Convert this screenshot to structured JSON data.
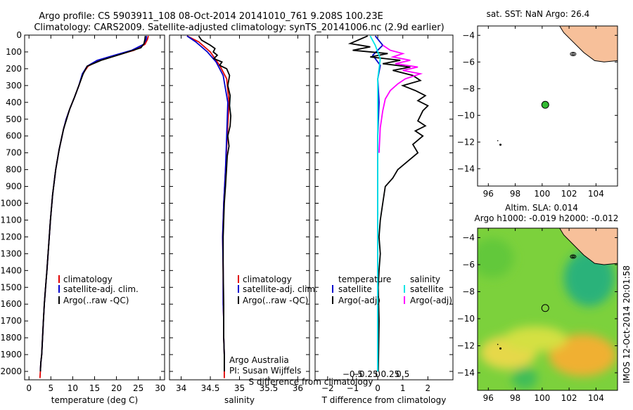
{
  "header": {
    "line1": "Argo profile: CS 5903911_108 08-Oct-2014 20141010_761 9.208S 100.23E",
    "line2": "Climatology: CARS2009. Satellite-adjusted climatology: synTS_20141006.nc (2.9d earlier)"
  },
  "side_stamp": "IMOS 12-Oct-2014 20:01:58",
  "colors": {
    "red": "#e00000",
    "blue": "#0000cc",
    "black": "#000000",
    "cyan": "#00e5e5",
    "magenta": "#ff00ff",
    "land": "#f7c09a",
    "ocean": "#ffffff",
    "float_marker": "#33bb33"
  },
  "chart_data": [
    {
      "id": "temperature",
      "type": "line",
      "xlabel": "temperature (deg C)",
      "ylabel": "",
      "xlim": [
        -1,
        31
      ],
      "ylim": [
        2050,
        0
      ],
      "xticks": [
        0,
        5,
        10,
        15,
        20,
        25,
        30
      ],
      "xtick_labels": [
        "0",
        "5",
        "10",
        "15",
        "20",
        "25",
        "30"
      ],
      "yticks": [
        0,
        100,
        200,
        300,
        400,
        500,
        600,
        700,
        800,
        900,
        1000,
        1100,
        1200,
        1300,
        1400,
        1500,
        1600,
        1700,
        1800,
        1900,
        2000
      ],
      "ytick_labels": [
        "0",
        "100",
        "200",
        "300",
        "400",
        "500",
        "600",
        "700",
        "800",
        "900",
        "1000",
        "1100",
        "1200",
        "1300",
        "1400",
        "1500",
        "1600",
        "1700",
        "1800",
        "1900",
        "2000"
      ],
      "legend": [
        "climatology",
        "satellite-adj. clim.",
        "Argo(..raw -QC)"
      ],
      "series": [
        {
          "name": "climatology",
          "color": "red",
          "x": [
            27.3,
            27.1,
            26.5,
            24,
            20,
            16,
            13.5,
            12.3,
            11.4,
            10.4,
            9.3,
            8.5,
            7.9,
            7.4,
            6.9,
            6.1,
            5.4,
            4.9,
            4.5,
            4.1,
            3.8,
            3.5,
            3.3,
            3.1,
            2.9,
            2.7,
            2.6,
            2.5
          ],
          "y": [
            5,
            25,
            55,
            90,
            120,
            150,
            185,
            230,
            300,
            370,
            440,
            500,
            560,
            620,
            680,
            800,
            950,
            1100,
            1250,
            1400,
            1500,
            1600,
            1700,
            1800,
            1900,
            1950,
            2000,
            2040
          ]
        },
        {
          "name": "satellite-adj. clim.",
          "color": "blue",
          "x": [
            26.9,
            26.8,
            26.2,
            23.5,
            19.5,
            15.6,
            13.3,
            12.2,
            11.4,
            10.4,
            9.3,
            8.5,
            7.9,
            7.4,
            6.9,
            6.1,
            5.4,
            4.9,
            4.5,
            4.1,
            3.8,
            3.5,
            3.3,
            3.1,
            2.9,
            2.7,
            2.6
          ],
          "y": [
            5,
            25,
            55,
            90,
            120,
            150,
            185,
            230,
            300,
            370,
            440,
            500,
            560,
            620,
            680,
            800,
            950,
            1100,
            1250,
            1400,
            1500,
            1600,
            1700,
            1800,
            1900,
            1950,
            2000
          ]
        },
        {
          "name": "Argo(..raw -QC)",
          "color": "black",
          "x": [
            26.6,
            26.5,
            26.3,
            25.6,
            21.5,
            16.5,
            13.3,
            12.4,
            11.4,
            10.4,
            9.3,
            8.6,
            7.9,
            7.4,
            6.9,
            6.1,
            5.4,
            4.9,
            4.5,
            4.1,
            3.8,
            3.5,
            3.3,
            3.1,
            2.9,
            2.7,
            2.6
          ],
          "y": [
            5,
            25,
            50,
            75,
            110,
            150,
            185,
            230,
            300,
            370,
            440,
            500,
            560,
            620,
            680,
            800,
            950,
            1100,
            1250,
            1400,
            1500,
            1600,
            1700,
            1800,
            1900,
            1950,
            2000
          ]
        }
      ]
    },
    {
      "id": "salinity",
      "type": "line",
      "xlabel": "salinity",
      "xlim": [
        33.8,
        36.2
      ],
      "ylim": [
        2050,
        0
      ],
      "xticks": [
        34,
        34.5,
        35,
        35.5,
        36
      ],
      "xtick_labels": [
        "34",
        "34.5",
        "35",
        "35.5",
        "36"
      ],
      "legend": [
        "climatology",
        "satellite-adj. clim.",
        "Argo(..raw -QC)"
      ],
      "annotations": [
        "Argo Australia",
        "PI: Susan Wijffels"
      ],
      "series": [
        {
          "name": "climatology",
          "color": "red",
          "x": [
            34.1,
            34.3,
            34.5,
            34.66,
            34.78,
            34.82,
            34.79,
            34.76,
            34.73,
            34.71,
            34.72,
            34.72,
            34.73,
            34.73,
            34.74,
            34.74,
            34.74
          ],
          "y": [
            5,
            40,
            100,
            180,
            260,
            400,
            600,
            800,
            1000,
            1200,
            1400,
            1600,
            1700,
            1800,
            1900,
            2000,
            2040
          ]
        },
        {
          "name": "satellite-adj. clim.",
          "color": "blue",
          "x": [
            34.1,
            34.25,
            34.45,
            34.6,
            34.72,
            34.8,
            34.78,
            34.76,
            34.73,
            34.71,
            34.72,
            34.72,
            34.73,
            34.73,
            34.74,
            34.74
          ],
          "y": [
            5,
            40,
            100,
            160,
            240,
            400,
            600,
            800,
            1000,
            1200,
            1400,
            1600,
            1700,
            1800,
            1900,
            2000
          ]
        },
        {
          "name": "Argo(..raw -QC)",
          "color": "black",
          "x": [
            34.3,
            34.35,
            34.5,
            34.58,
            34.55,
            34.62,
            34.56,
            34.7,
            34.66,
            34.78,
            34.83,
            34.8,
            34.84,
            34.83,
            34.85,
            34.84,
            34.8,
            34.82,
            34.79,
            34.78,
            34.76,
            34.74,
            34.73,
            34.72,
            34.72,
            34.73,
            34.73,
            34.74,
            34.74
          ],
          "y": [
            5,
            30,
            60,
            80,
            100,
            120,
            140,
            160,
            180,
            200,
            240,
            300,
            360,
            420,
            480,
            540,
            600,
            660,
            720,
            780,
            900,
            1000,
            1100,
            1200,
            1400,
            1600,
            1800,
            1900,
            2000
          ]
        }
      ]
    },
    {
      "id": "difference",
      "type": "line",
      "xlabel": "T difference from climatology",
      "top_label": "S difference from climatology",
      "xlim": [
        -2.5,
        3
      ],
      "ylim": [
        2050,
        0
      ],
      "xticks": [
        -2,
        -1,
        0,
        1,
        2
      ],
      "xtick_labels": [
        "−2",
        "−1",
        "0",
        "1",
        "2"
      ],
      "s_xticks": [
        -1,
        -0.5,
        0,
        0.5,
        1
      ],
      "s_xtick_labels": [
        "−0.5",
        "−0.25",
        "0",
        "0.25",
        "0.5"
      ],
      "legend_headers": [
        "temperature",
        "salinity"
      ],
      "legend": [
        "satellite",
        "Argo(-adj)",
        "satellite",
        "Argo(-adj)"
      ],
      "series": [
        {
          "name": "satellite",
          "color": "blue",
          "x": [
            -0.1,
            0.2,
            -0.2,
            0.1,
            0,
            0.05,
            0,
            0,
            0,
            0,
            0,
            0
          ],
          "y": [
            5,
            60,
            120,
            180,
            260,
            400,
            600,
            800,
            1000,
            1400,
            1800,
            2000
          ]
        },
        {
          "name": "Argo(-adj)",
          "color": "black",
          "x": [
            -0.4,
            -1.1,
            -0.3,
            -1.0,
            0.4,
            -0.3,
            0.9,
            0.2,
            1.3,
            0.6,
            1.4,
            1.7,
            1.0,
            1.5,
            1.9,
            1.6,
            2.0,
            1.8,
            1.7,
            1.6,
            1.9,
            1.5,
            1.8,
            1.4,
            1.6,
            1.2,
            0.8,
            0.6,
            0.3,
            0.2,
            0.1,
            0.05,
            0.1,
            0.05,
            0.02,
            0.05,
            0.03,
            0.02
          ],
          "y": [
            5,
            50,
            70,
            90,
            110,
            130,
            150,
            170,
            190,
            210,
            240,
            270,
            300,
            330,
            360,
            390,
            420,
            450,
            480,
            510,
            540,
            570,
            600,
            650,
            700,
            750,
            800,
            850,
            900,
            1000,
            1100,
            1200,
            1300,
            1400,
            1500,
            1700,
            1900,
            2000
          ]
        },
        {
          "name": "satellite",
          "color": "cyan",
          "x": [
            -0.3,
            -0.1,
            0.1,
            0,
            0,
            0,
            0,
            0,
            0,
            0
          ],
          "y": [
            5,
            60,
            140,
            260,
            500,
            800,
            1100,
            1400,
            1800,
            2000
          ]
        },
        {
          "name": "Argo(-adj)",
          "color": "magenta",
          "x": [
            0.2,
            0.5,
            1.0,
            0.6,
            1.3,
            0.7,
            1.6,
            1.0,
            1.7,
            1.1,
            0.8,
            0.5,
            0.3,
            0.2,
            0.1,
            0.05
          ],
          "y": [
            60,
            90,
            110,
            130,
            150,
            170,
            190,
            210,
            230,
            260,
            290,
            330,
            380,
            450,
            550,
            700
          ]
        }
      ]
    },
    {
      "id": "sst_map",
      "type": "scatter",
      "title": "sat. SST: NaN Argo: 26.4",
      "xlim": [
        95.2,
        105.6
      ],
      "ylim": [
        -15.3,
        -3.3
      ],
      "xticks": [
        96,
        98,
        100,
        102,
        104
      ],
      "xtick_labels": [
        "96",
        "98",
        "100",
        "102",
        "104"
      ],
      "yticks": [
        -4,
        -6,
        -8,
        -10,
        -12,
        -14
      ],
      "ytick_labels": [
        "−4",
        "−6",
        "−8",
        "−10",
        "−12",
        "−14"
      ],
      "argo_position": {
        "lon": 100.23,
        "lat": -9.21
      },
      "grid": false
    },
    {
      "id": "sla_map",
      "type": "heatmap",
      "title": "Altim. SLA: 0.014",
      "subtitle": "Argo h1000: -0.019 h2000: -0.012",
      "xlim": [
        95.2,
        105.6
      ],
      "ylim": [
        -15.3,
        -3.3
      ],
      "xticks": [
        96,
        98,
        100,
        102,
        104
      ],
      "xtick_labels": [
        "96",
        "98",
        "100",
        "102",
        "104"
      ],
      "yticks": [
        -4,
        -6,
        -8,
        -10,
        -12,
        -14
      ],
      "ytick_labels": [
        "−4",
        "−6",
        "−8",
        "−10",
        "−12",
        "−14"
      ],
      "argo_position": {
        "lon": 100.23,
        "lat": -9.21
      },
      "grid": false
    }
  ]
}
